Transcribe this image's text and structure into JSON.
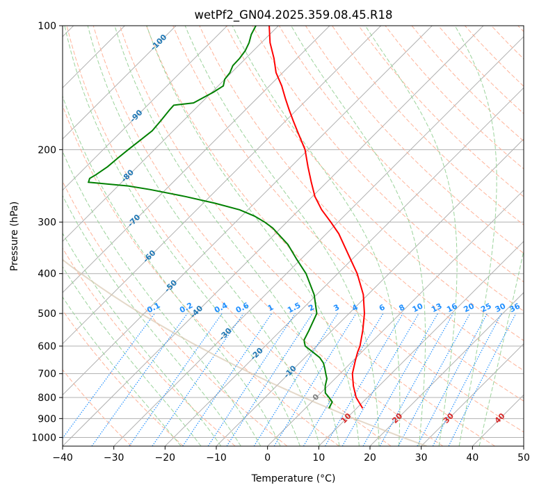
{
  "chart_data": {
    "type": "skew-t",
    "title": "wetPf2_GN04.2025.359.08.45.R18",
    "xlabel": "Temperature (°C)",
    "ylabel": "Pressure (hPa)",
    "xlim": [
      -40,
      50
    ],
    "ylim": [
      1050,
      100
    ],
    "y_scale": "log",
    "grid": true,
    "x_ticks": [
      "−40",
      "−30",
      "−20",
      "−10",
      "0",
      "10",
      "20",
      "30",
      "40",
      "50"
    ],
    "x_tick_values": [
      -40,
      -30,
      -20,
      -10,
      0,
      10,
      20,
      30,
      40,
      50
    ],
    "y_ticks": [
      "100",
      "200",
      "300",
      "400",
      "500",
      "600",
      "700",
      "800",
      "900",
      "1000"
    ],
    "y_tick_values": [
      100,
      200,
      300,
      400,
      500,
      600,
      700,
      800,
      900,
      1000
    ],
    "series": [
      {
        "role": "temperature",
        "color": "#ff0000",
        "pressure": [
          850,
          800,
          750,
          700,
          650,
          620,
          600,
          550,
          500,
          450,
          400,
          360,
          320,
          300,
          280,
          260,
          240,
          220,
          200,
          180,
          170,
          160,
          150,
          140,
          130,
          120,
          110,
          100
        ],
        "temperature": [
          11.2,
          7.8,
          5.0,
          2.4,
          0.4,
          -0.8,
          -1.5,
          -4.0,
          -7.0,
          -10.9,
          -16.2,
          -21.6,
          -27.6,
          -31.4,
          -35.6,
          -39.5,
          -43.0,
          -46.7,
          -50.6,
          -55.8,
          -58.6,
          -61.5,
          -64.5,
          -67.6,
          -71.3,
          -74.5,
          -78.3,
          -81.8
        ]
      },
      {
        "role": "dewpoint",
        "color": "#008000",
        "pressure": [
          850,
          820,
          800,
          780,
          750,
          720,
          700,
          680,
          660,
          640,
          620,
          600,
          580,
          550,
          500,
          450,
          400,
          370,
          340,
          310,
          300,
          290,
          280,
          270,
          260,
          250,
          245,
          240,
          235,
          230,
          220,
          210,
          200,
          190,
          180,
          170,
          160,
          156,
          154,
          150,
          145,
          140,
          135,
          130,
          125,
          120,
          115,
          110,
          105,
          100
        ],
        "temperature": [
          4.6,
          4.0,
          2.5,
          0.9,
          -0.5,
          -1.6,
          -2.8,
          -4.0,
          -5.3,
          -7.1,
          -9.6,
          -12.2,
          -13.6,
          -14.5,
          -16.3,
          -20.5,
          -26.2,
          -30.7,
          -35.4,
          -41.6,
          -44.3,
          -47.5,
          -51.6,
          -57.6,
          -64.8,
          -73.0,
          -78.0,
          -86.5,
          -87.0,
          -86.5,
          -85.8,
          -85.5,
          -85.1,
          -84.6,
          -84.1,
          -84.4,
          -84.8,
          -84.9,
          -81.5,
          -80.7,
          -79.7,
          -79.0,
          -80.0,
          -80.3,
          -81.1,
          -81.2,
          -81.6,
          -82.4,
          -83.6,
          -84.4
        ]
      }
    ],
    "isotherm_labels": [
      "-100",
      "-90",
      "-80",
      "-70",
      "-60",
      "-50",
      "-40",
      "-30",
      "-20",
      "-10",
      "0",
      "10",
      "20",
      "30",
      "40"
    ],
    "mixing_ratio_labels": [
      "0.1",
      "0.2",
      "0.4",
      "0.6",
      "1",
      "1.5",
      "2",
      "3",
      "4",
      "6",
      "8",
      "10",
      "13",
      "16",
      "20",
      "25",
      "30",
      "36"
    ],
    "colors": {
      "isotherm_line": "#b0b0b0",
      "isotherm_label_cold": "#1f77b4",
      "isotherm_label_zero": "#808080",
      "isotherm_label_warm": "#d62728",
      "dry_adiabat": "#ffb399",
      "moist_adiabat": "#9bd39b",
      "mixing_ratio": "#1f8fff",
      "grid": "#b0b0b0",
      "lcl_curve": "#d8c8b0"
    }
  }
}
